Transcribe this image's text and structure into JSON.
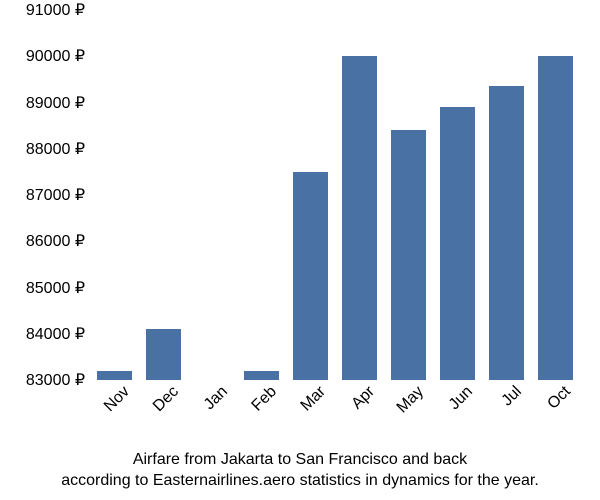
{
  "chart": {
    "type": "bar",
    "categories": [
      "Nov",
      "Dec",
      "Jan",
      "Feb",
      "Mar",
      "Apr",
      "May",
      "Jun",
      "Jul",
      "Oct"
    ],
    "values": [
      83200,
      84100,
      83000,
      83200,
      87500,
      90000,
      88400,
      88900,
      89350,
      90000
    ],
    "bar_color": "#4a71a4",
    "background_color": "#ffffff",
    "y_axis": {
      "min": 83000,
      "max": 91000,
      "tick_step": 1000,
      "tick_suffix": " ₽",
      "ticks": [
        83000,
        84000,
        85000,
        86000,
        87000,
        88000,
        89000,
        90000,
        91000
      ],
      "label_color": "#000000",
      "label_fontsize": 16
    },
    "x_axis": {
      "label_rotation_deg": -45,
      "label_fontsize": 16,
      "label_color": "#000000"
    },
    "bar_width_ratio": 0.72,
    "caption_line1": "Airfare from Jakarta to San Francisco and back",
    "caption_line2": "according to Easternairlines.aero statistics in dynamics for the year.",
    "caption_fontsize": 16
  }
}
